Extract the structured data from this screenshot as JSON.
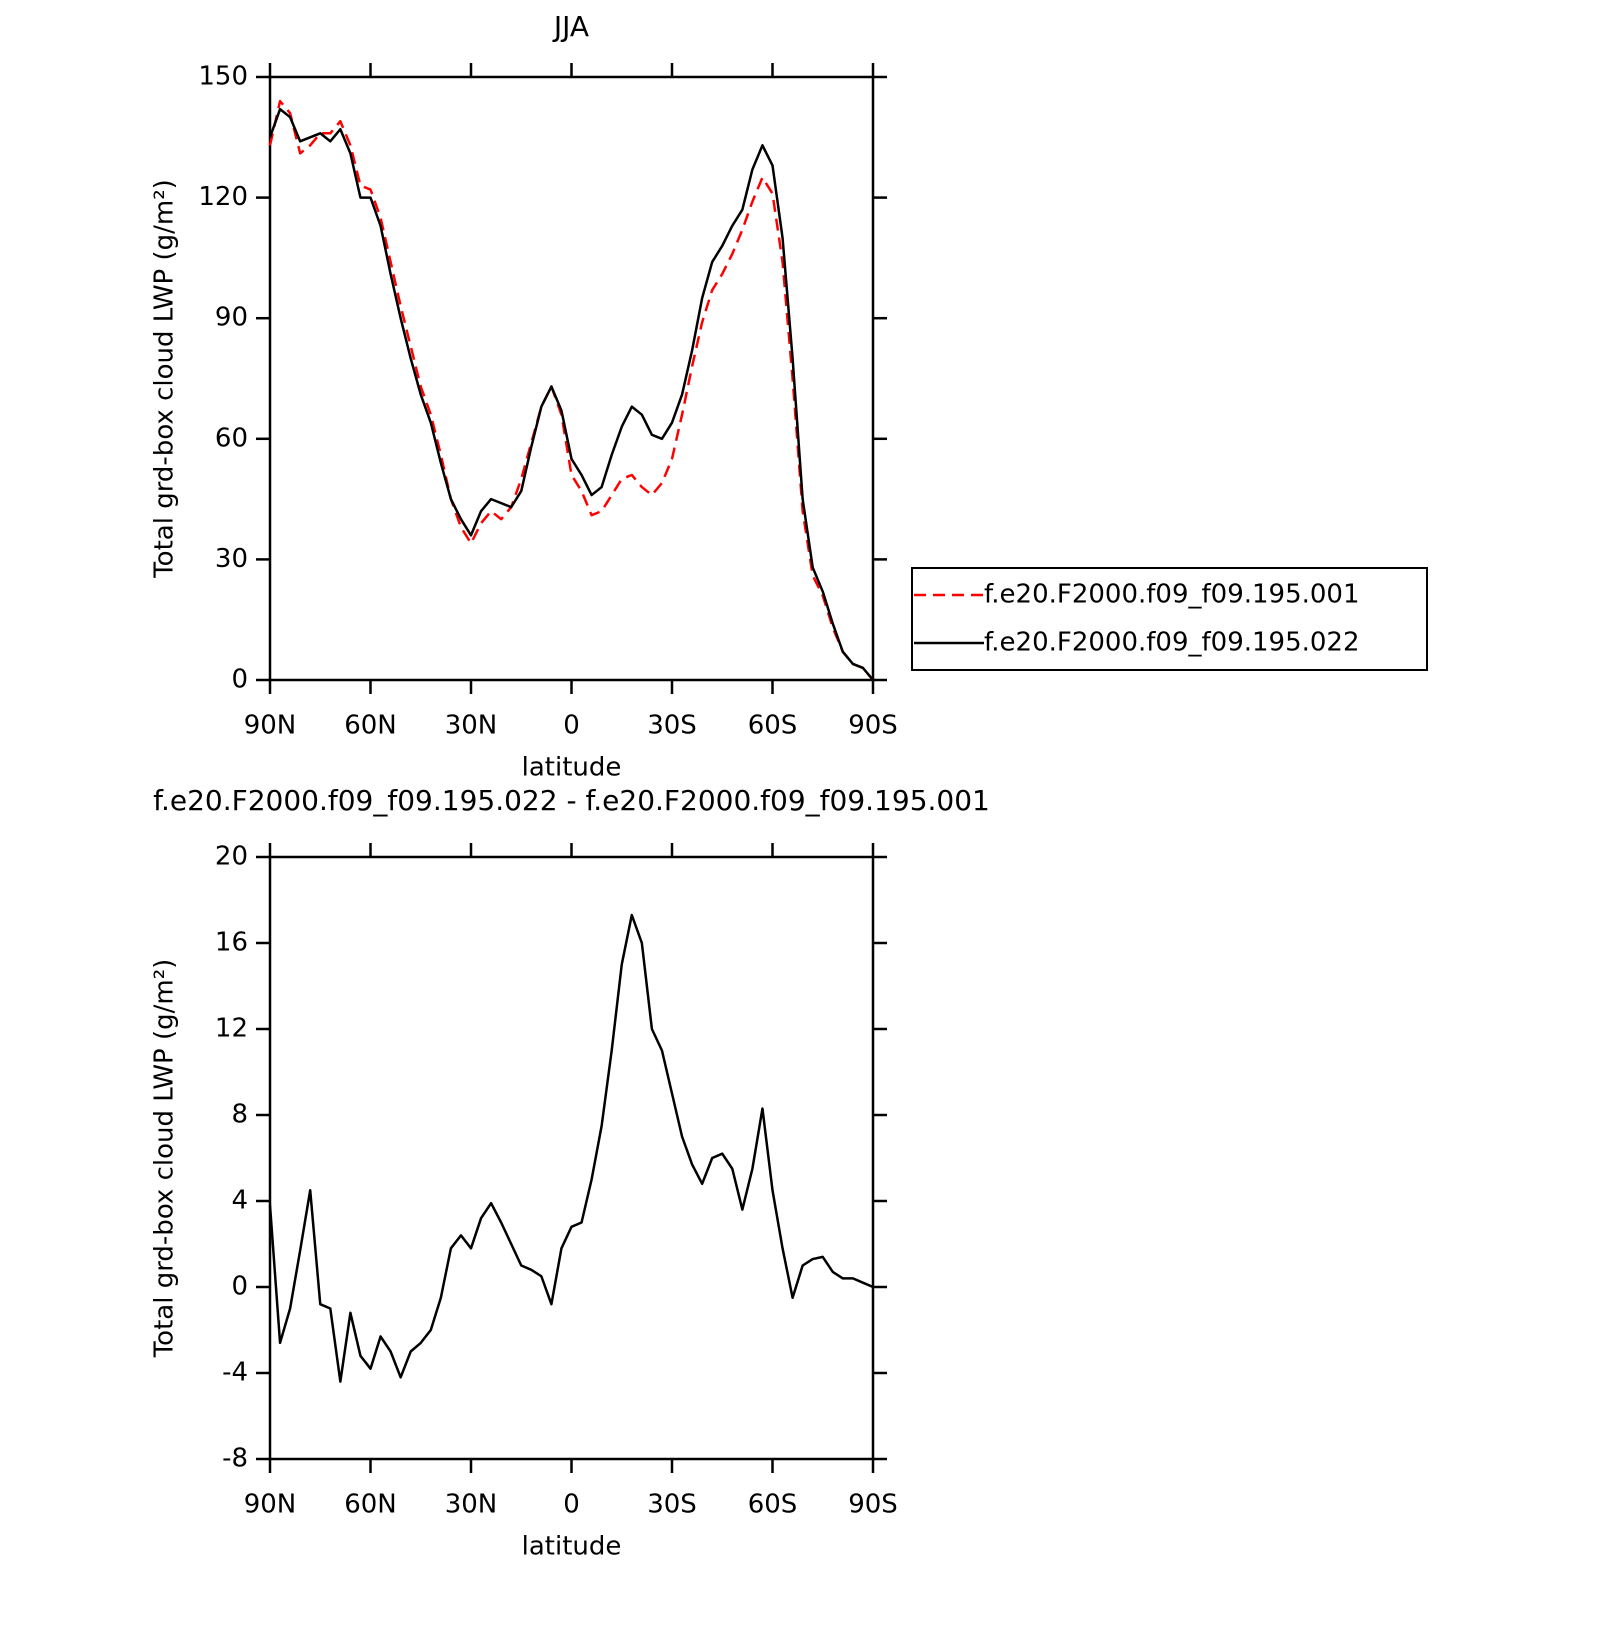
{
  "chart_data": [
    {
      "type": "line",
      "title": "JJA",
      "xlabel": "latitude",
      "ylabel": "Total grd-box cloud LWP (g/m²)",
      "x": [
        90,
        87,
        84,
        81,
        78,
        75,
        72,
        69,
        66,
        63,
        60,
        57,
        54,
        51,
        48,
        45,
        42,
        39,
        36,
        33,
        30,
        27,
        24,
        21,
        18,
        15,
        12,
        9,
        6,
        3,
        0,
        -3,
        -6,
        -9,
        -12,
        -15,
        -18,
        -21,
        -24,
        -27,
        -30,
        -33,
        -36,
        -39,
        -42,
        -45,
        -48,
        -51,
        -54,
        -57,
        -60,
        -63,
        -66,
        -69,
        -72,
        -75,
        -78,
        -81,
        -84,
        -87,
        -90
      ],
      "series": [
        {
          "name": "f.e20.F2000.f09_f09.195.001",
          "color": "#ff0000",
          "dash": true,
          "values": [
            133,
            144,
            141,
            131,
            133,
            136,
            136,
            139,
            133,
            123,
            122,
            115,
            104,
            93,
            83,
            73,
            66,
            56,
            45,
            38,
            34,
            39,
            42,
            40,
            43,
            50,
            59,
            68,
            73,
            66,
            51,
            47,
            41,
            42,
            46,
            50,
            51,
            48,
            46,
            49,
            55,
            66,
            78,
            89,
            97,
            101,
            106,
            112,
            119,
            125,
            121,
            104,
            75,
            42,
            26,
            21,
            13,
            7,
            4,
            3,
            0
          ]
        },
        {
          "name": "f.e20.F2000.f09_f09.195.022",
          "color": "#000000",
          "dash": false,
          "values": [
            135,
            142,
            140,
            134,
            135,
            136,
            134,
            137,
            131,
            120,
            120,
            113,
            101,
            90,
            80,
            71,
            64,
            54,
            45,
            40,
            36,
            42,
            45,
            44,
            43,
            47,
            58,
            68,
            73,
            67,
            55,
            51,
            46,
            48,
            56,
            63,
            68,
            66,
            61,
            60,
            64,
            71,
            82,
            95,
            104,
            108,
            113,
            117,
            127,
            133,
            128,
            110,
            80,
            45,
            28,
            22,
            14,
            7,
            4,
            3,
            0
          ]
        }
      ],
      "xlim": [
        90,
        -90
      ],
      "xticks": [
        {
          "value": 90,
          "label": "90N"
        },
        {
          "value": 60,
          "label": "60N"
        },
        {
          "value": 30,
          "label": "30N"
        },
        0,
        {
          "value": -30,
          "label": "30S"
        },
        {
          "value": -60,
          "label": "60S"
        },
        {
          "value": -90,
          "label": "90S"
        }
      ],
      "ylim": [
        0,
        150
      ],
      "yticks": [
        0,
        30,
        60,
        90,
        120,
        150
      ],
      "legend": "right"
    },
    {
      "type": "line",
      "title": "f.e20.F2000.f09_f09.195.022 - f.e20.F2000.f09_f09.195.001",
      "xlabel": "latitude",
      "ylabel": "Total grd-box cloud LWP (g/m²)",
      "x": [
        90,
        87,
        84,
        81,
        78,
        75,
        72,
        69,
        66,
        63,
        60,
        57,
        54,
        51,
        48,
        45,
        42,
        39,
        36,
        33,
        30,
        27,
        24,
        21,
        18,
        15,
        12,
        9,
        6,
        3,
        0,
        -3,
        -6,
        -9,
        -12,
        -15,
        -18,
        -21,
        -24,
        -27,
        -30,
        -33,
        -36,
        -39,
        -42,
        -45,
        -48,
        -51,
        -54,
        -57,
        -60,
        -63,
        -66,
        -69,
        -72,
        -75,
        -78,
        -81,
        -84,
        -87,
        -90
      ],
      "series": [
        {
          "color": "#000000",
          "dash": false,
          "values": [
            3.8,
            -2.6,
            -1,
            1.7,
            4.5,
            -0.8,
            -1,
            -4.4,
            -1.2,
            -3.2,
            -3.8,
            -2.3,
            -3,
            -4.2,
            -3,
            -2.6,
            -2,
            -0.5,
            1.8,
            2.4,
            1.8,
            3.2,
            3.9,
            3,
            2,
            1,
            0.8,
            0.5,
            -0.8,
            1.8,
            2.8,
            3,
            5,
            7.5,
            11,
            15,
            17.3,
            16,
            12,
            11,
            9,
            7,
            5.7,
            4.8,
            6,
            6.2,
            5.5,
            3.6,
            5.5,
            8.3,
            4.5,
            1.8,
            -0.5,
            1,
            1.3,
            1.4,
            0.7,
            0.4,
            0.4,
            0.2,
            0
          ]
        }
      ],
      "xlim": [
        90,
        -90
      ],
      "xticks": [
        {
          "value": 90,
          "label": "90N"
        },
        {
          "value": 60,
          "label": "60N"
        },
        {
          "value": 30,
          "label": "30N"
        },
        0,
        {
          "value": -30,
          "label": "30S"
        },
        {
          "value": -60,
          "label": "60S"
        },
        {
          "value": -90,
          "label": "90S"
        }
      ],
      "ylim": [
        -8,
        20
      ],
      "yticks": [
        -8,
        -4,
        0,
        4,
        8,
        12,
        16,
        20
      ]
    }
  ]
}
